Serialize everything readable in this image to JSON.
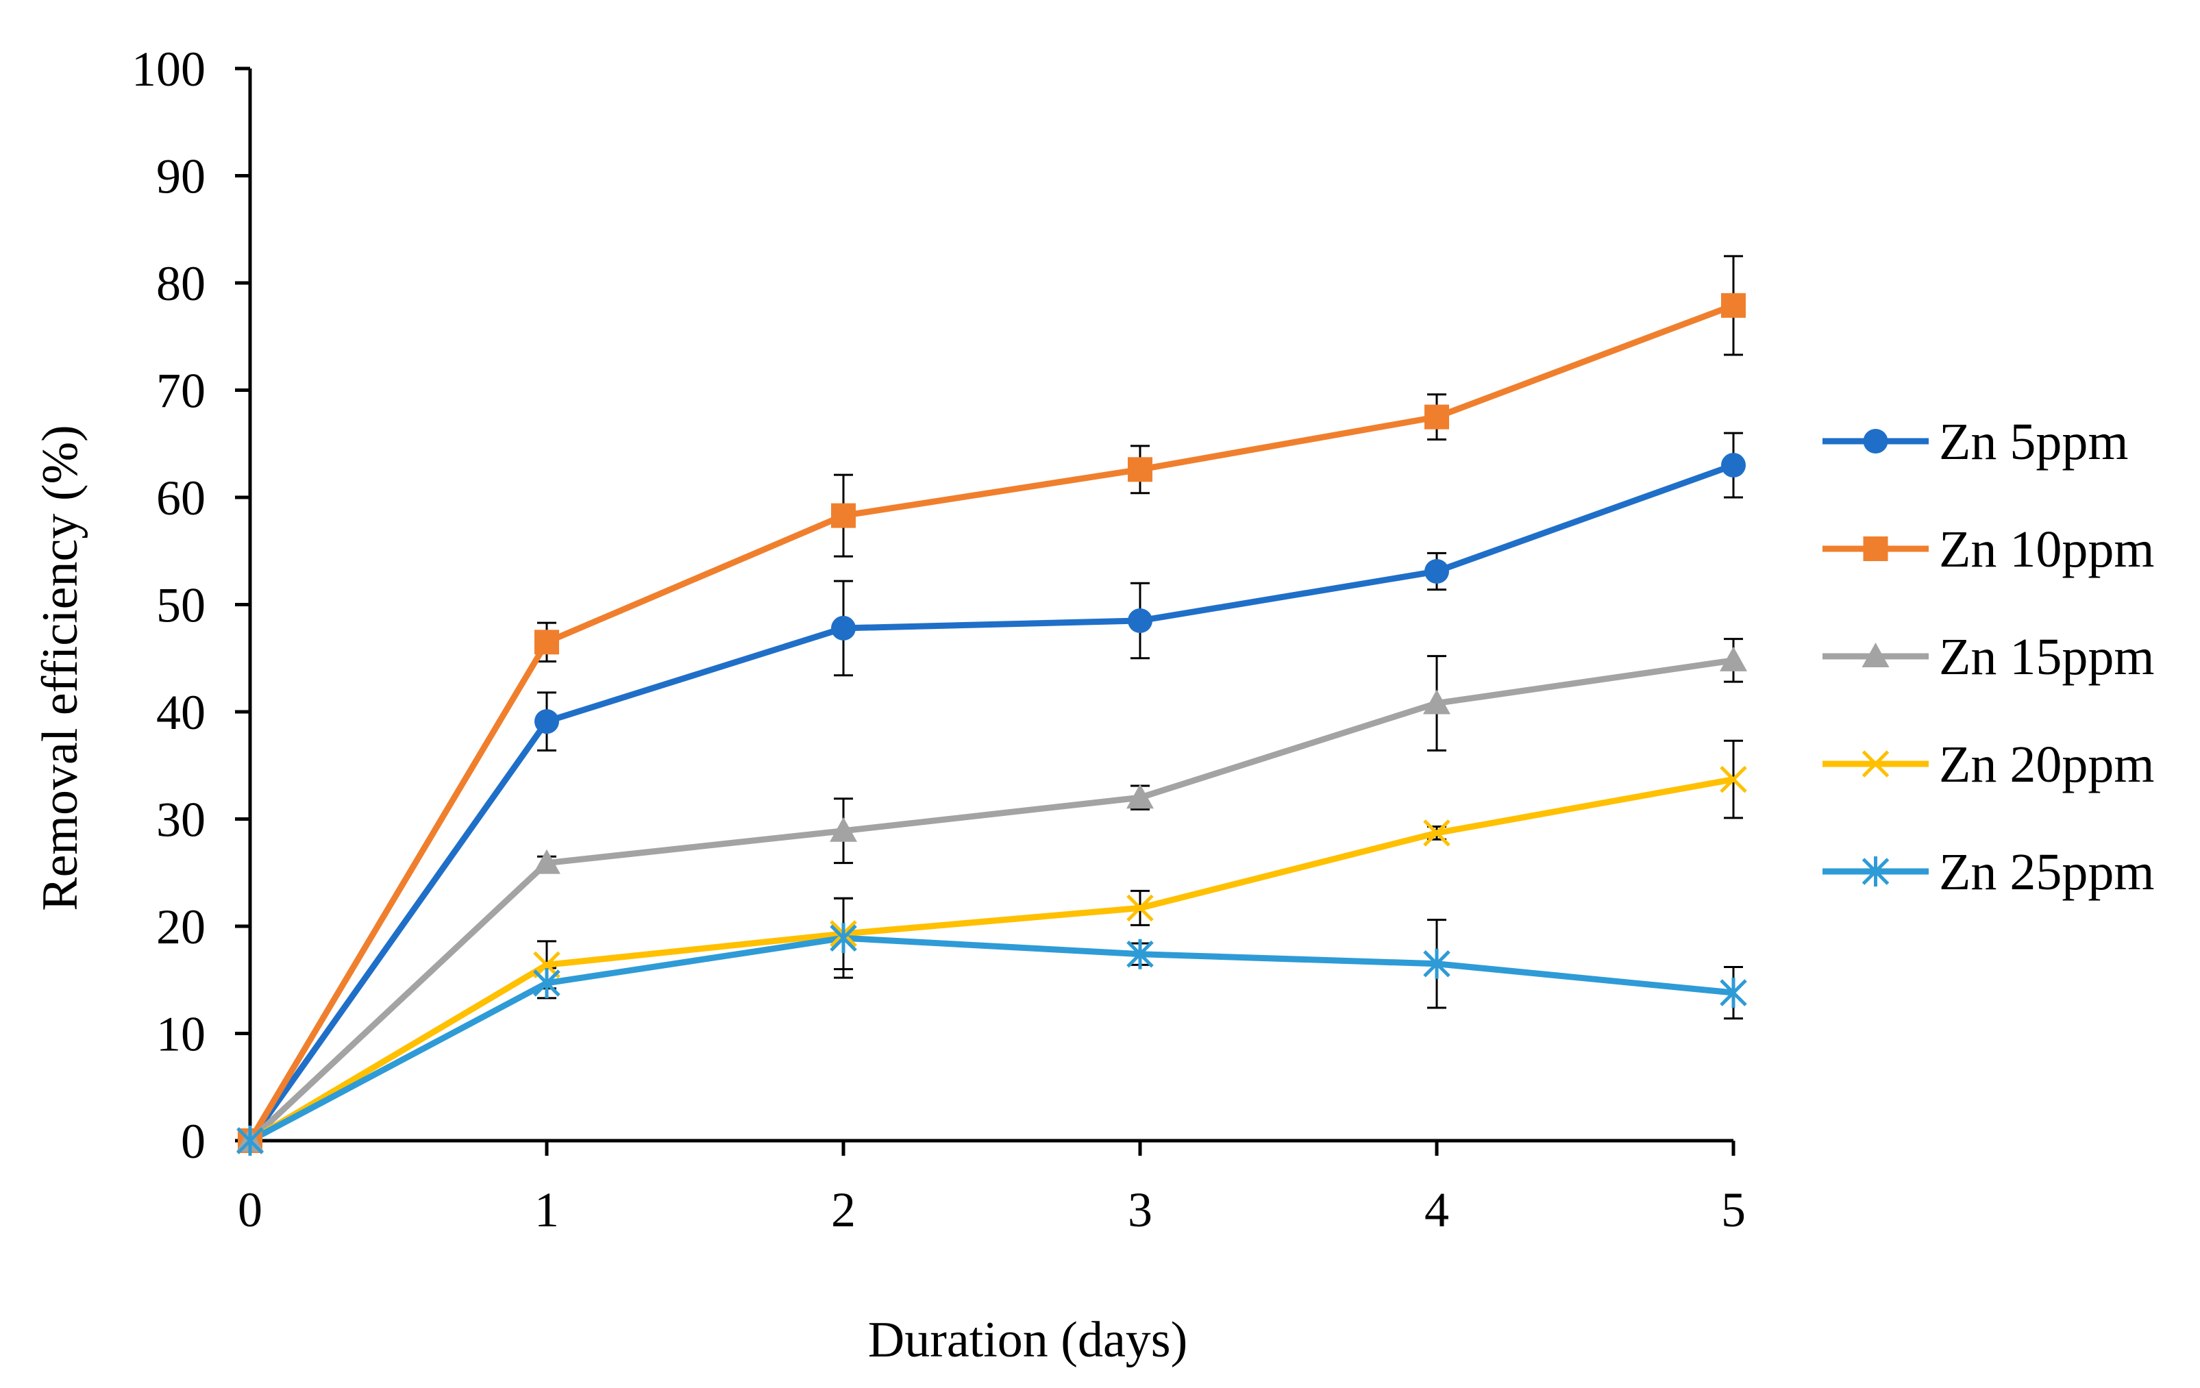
{
  "chart_data": {
    "type": "line",
    "xlabel": "Duration (days)",
    "ylabel": "Removal efficiency (%)",
    "x": [
      0,
      1,
      2,
      3,
      4,
      5
    ],
    "xlim": [
      0,
      5
    ],
    "ylim": [
      0,
      100
    ],
    "x_ticks": [
      0,
      1,
      2,
      3,
      4,
      5
    ],
    "y_ticks": [
      0,
      10,
      20,
      30,
      40,
      50,
      60,
      70,
      80,
      90,
      100
    ],
    "grid": false,
    "legend_position": "right",
    "series": [
      {
        "name": "Zn 5ppm",
        "color": "#1F6FC8",
        "marker": "circle",
        "values": [
          0,
          39.1,
          47.8,
          48.5,
          53.1,
          63.0
        ],
        "errors": [
          0,
          2.7,
          4.4,
          3.5,
          1.7,
          3.0
        ]
      },
      {
        "name": "Zn 10ppm",
        "color": "#F07F2D",
        "marker": "square",
        "values": [
          0,
          46.5,
          58.3,
          62.6,
          67.5,
          77.9
        ],
        "errors": [
          0,
          1.8,
          3.8,
          2.2,
          2.1,
          4.6
        ]
      },
      {
        "name": "Zn 15ppm",
        "color": "#A3A3A3",
        "marker": "triangle",
        "values": [
          0,
          25.9,
          28.9,
          32.0,
          40.8,
          44.8
        ],
        "errors": [
          0,
          0.6,
          3.0,
          1.1,
          4.4,
          2.0
        ]
      },
      {
        "name": "Zn 20ppm",
        "color": "#FFC000",
        "marker": "x",
        "values": [
          0,
          16.4,
          19.3,
          21.7,
          28.7,
          33.7
        ],
        "errors": [
          0,
          2.2,
          3.3,
          1.6,
          0.6,
          3.6
        ]
      },
      {
        "name": "Zn 25ppm",
        "color": "#2E9BD6",
        "marker": "star",
        "values": [
          0,
          14.7,
          18.9,
          17.4,
          16.5,
          13.8
        ],
        "errors": [
          0,
          1.4,
          3.7,
          1.0,
          4.1,
          2.4
        ]
      }
    ]
  }
}
